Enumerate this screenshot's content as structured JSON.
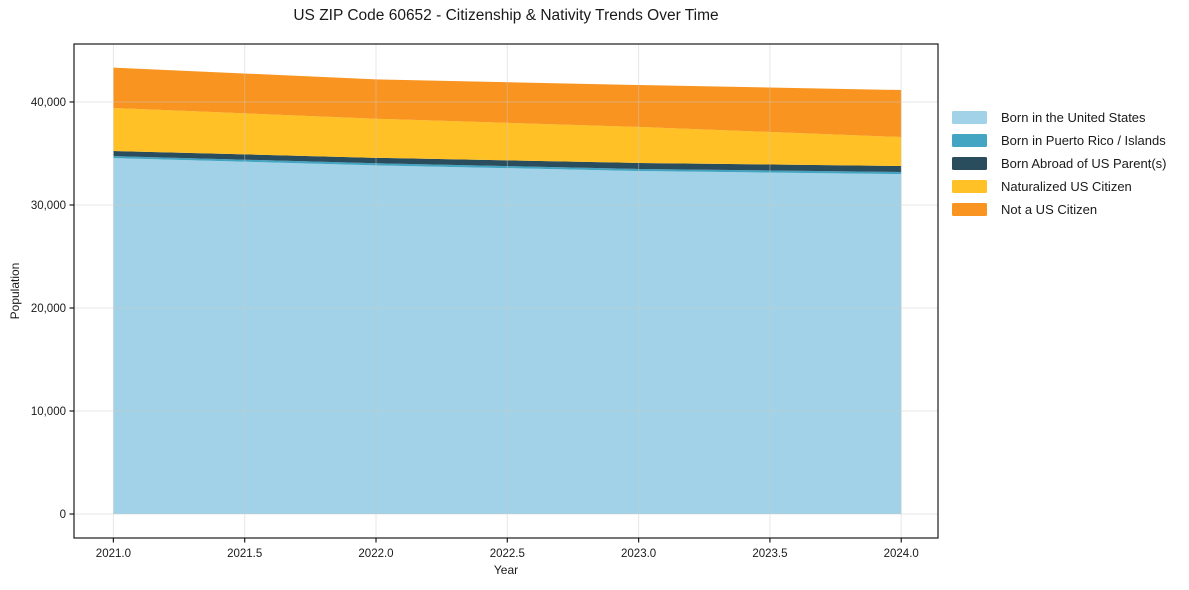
{
  "chart_data": {
    "type": "area",
    "stacked": true,
    "title": "US ZIP Code 60652 - Citizenship & Nativity Trends Over Time",
    "xlabel": "Year",
    "ylabel": "Population",
    "x": [
      2021,
      2022,
      2023,
      2024
    ],
    "series": [
      {
        "name": "Born in the United States",
        "color": "#A2D2E7",
        "values": [
          34550,
          33850,
          33300,
          33000
        ]
      },
      {
        "name": "Born in Puerto Rico / Islands",
        "color": "#44A5C2",
        "values": [
          200,
          200,
          200,
          200
        ]
      },
      {
        "name": "Born Abroad of US Parent(s)",
        "color": "#2A4D5E",
        "values": [
          490,
          530,
          580,
          580
        ]
      },
      {
        "name": "Naturalized US Citizen",
        "color": "#FFC125",
        "values": [
          4180,
          3790,
          3500,
          2820
        ]
      },
      {
        "name": "Not a US Citizen",
        "color": "#F8941F",
        "values": [
          3920,
          3820,
          4070,
          4560
        ]
      }
    ],
    "x_ticks": [
      {
        "v": 2021.0,
        "label": "2021.0"
      },
      {
        "v": 2021.5,
        "label": "2021.5"
      },
      {
        "v": 2022.0,
        "label": "2022.0"
      },
      {
        "v": 2022.5,
        "label": "2022.5"
      },
      {
        "v": 2023.0,
        "label": "2023.0"
      },
      {
        "v": 2023.5,
        "label": "2023.5"
      },
      {
        "v": 2024.0,
        "label": "2024.0"
      }
    ],
    "y_ticks": [
      {
        "v": 0,
        "label": "0"
      },
      {
        "v": 10000,
        "label": "10,000"
      },
      {
        "v": 20000,
        "label": "20,000"
      },
      {
        "v": 30000,
        "label": "30,000"
      },
      {
        "v": 40000,
        "label": "40,000"
      }
    ],
    "xlim": [
      2020.85,
      2024.14
    ],
    "ylim": [
      -2330,
      45630
    ],
    "grid": true,
    "legend_position": "right",
    "spine_color": "#1a1a1a",
    "grid_color": "#c9c9c9"
  }
}
